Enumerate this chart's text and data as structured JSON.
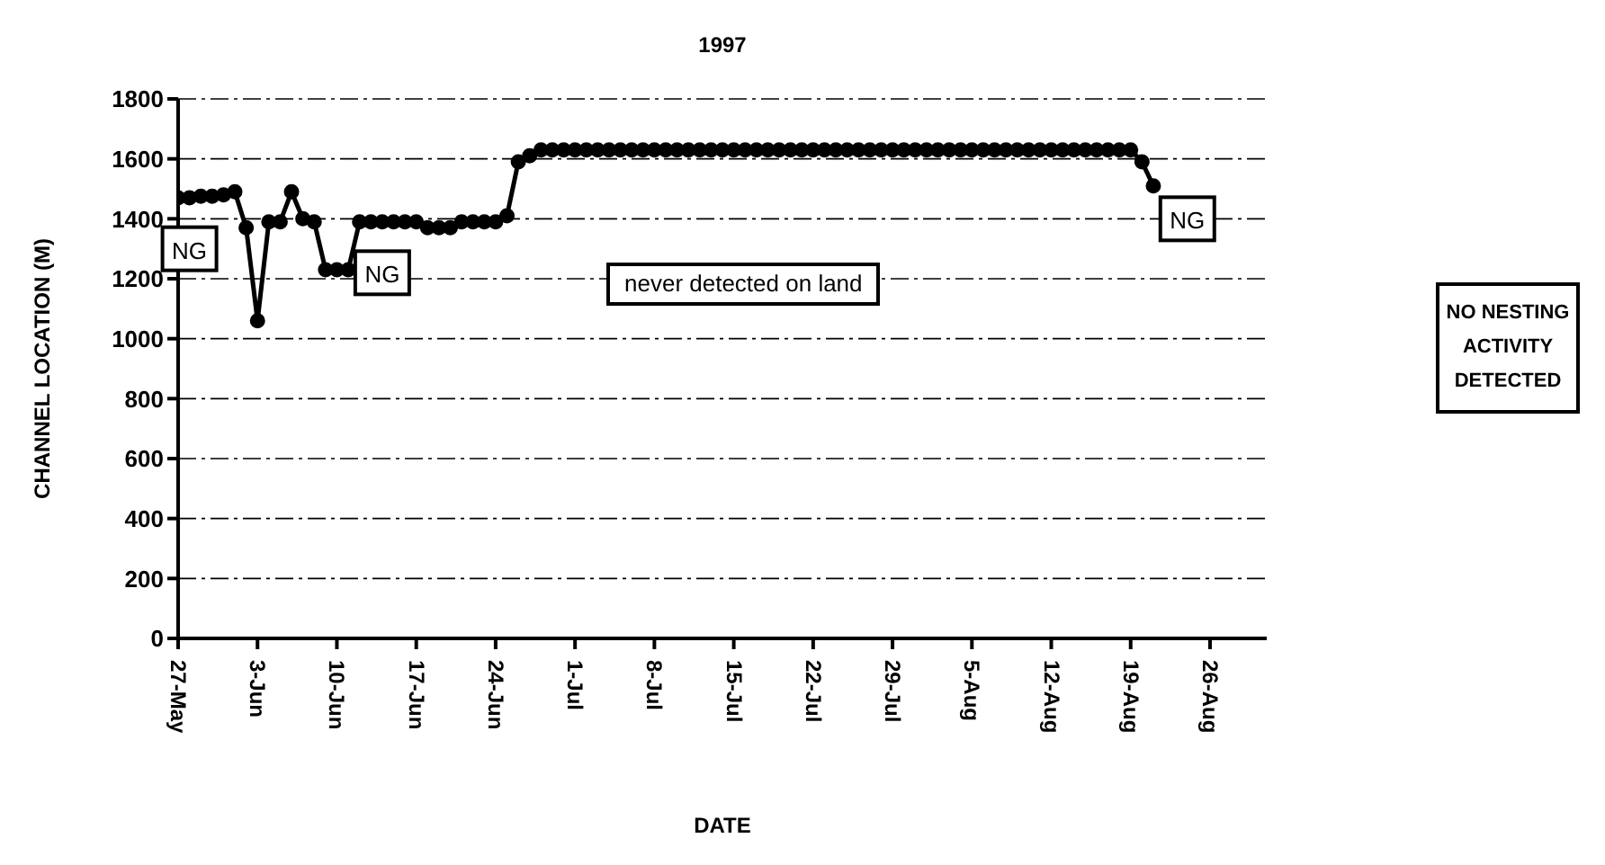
{
  "chart_data": {
    "type": "line",
    "title": "1997",
    "xlabel": "DATE",
    "ylabel": "CHANNEL LOCATION (M)",
    "x": [
      "1997-05-27",
      "1997-05-28",
      "1997-05-29",
      "1997-05-30",
      "1997-05-31",
      "1997-06-01",
      "1997-06-02",
      "1997-06-03",
      "1997-06-04",
      "1997-06-05",
      "1997-06-06",
      "1997-06-07",
      "1997-06-08",
      "1997-06-09",
      "1997-06-10",
      "1997-06-11",
      "1997-06-12",
      "1997-06-13",
      "1997-06-14",
      "1997-06-15",
      "1997-06-16",
      "1997-06-17",
      "1997-06-18",
      "1997-06-19",
      "1997-06-20",
      "1997-06-21",
      "1997-06-22",
      "1997-06-23",
      "1997-06-24",
      "1997-06-25",
      "1997-06-26",
      "1997-06-27",
      "1997-06-28",
      "1997-06-29",
      "1997-06-30",
      "1997-07-01",
      "1997-07-02",
      "1997-07-03",
      "1997-07-04",
      "1997-07-05",
      "1997-07-06",
      "1997-07-07",
      "1997-07-08",
      "1997-07-09",
      "1997-07-10",
      "1997-07-11",
      "1997-07-12",
      "1997-07-13",
      "1997-07-14",
      "1997-07-15",
      "1997-07-16",
      "1997-07-17",
      "1997-07-18",
      "1997-07-19",
      "1997-07-20",
      "1997-07-21",
      "1997-07-22",
      "1997-07-23",
      "1997-07-24",
      "1997-07-25",
      "1997-07-26",
      "1997-07-27",
      "1997-07-28",
      "1997-07-29",
      "1997-07-30",
      "1997-07-31",
      "1997-08-01",
      "1997-08-02",
      "1997-08-03",
      "1997-08-04",
      "1997-08-05",
      "1997-08-06",
      "1997-08-07",
      "1997-08-08",
      "1997-08-09",
      "1997-08-10",
      "1997-08-11",
      "1997-08-12",
      "1997-08-13",
      "1997-08-14",
      "1997-08-15",
      "1997-08-16",
      "1997-08-17",
      "1997-08-18",
      "1997-08-19",
      "1997-08-20",
      "1997-08-21"
    ],
    "series": [
      {
        "color": "#000000",
        "values": [
          1470,
          1470,
          1475,
          1475,
          1480,
          1490,
          1370,
          1060,
          1390,
          1390,
          1490,
          1400,
          1390,
          1230,
          1230,
          1230,
          1390,
          1390,
          1390,
          1390,
          1390,
          1390,
          1370,
          1370,
          1370,
          1390,
          1390,
          1390,
          1390,
          1410,
          1590,
          1610,
          1630,
          1630,
          1630,
          1630,
          1630,
          1630,
          1630,
          1630,
          1630,
          1630,
          1630,
          1630,
          1630,
          1630,
          1630,
          1630,
          1630,
          1630,
          1630,
          1630,
          1630,
          1630,
          1630,
          1630,
          1630,
          1630,
          1630,
          1630,
          1630,
          1630,
          1630,
          1630,
          1630,
          1630,
          1630,
          1630,
          1630,
          1630,
          1630,
          1630,
          1630,
          1630,
          1630,
          1630,
          1630,
          1630,
          1630,
          1630,
          1630,
          1630,
          1630,
          1630,
          1630,
          1590,
          1510
        ]
      }
    ],
    "xlim": [
      "1997-05-27",
      "1997-08-31"
    ],
    "xticks": [
      {
        "value": "1997-05-27",
        "label": "27-May"
      },
      {
        "value": "1997-06-03",
        "label": "3-Jun"
      },
      {
        "value": "1997-06-10",
        "label": "10-Jun"
      },
      {
        "value": "1997-06-17",
        "label": "17-Jun"
      },
      {
        "value": "1997-06-24",
        "label": "24-Jun"
      },
      {
        "value": "1997-07-01",
        "label": "1-Jul"
      },
      {
        "value": "1997-07-08",
        "label": "8-Jul"
      },
      {
        "value": "1997-07-15",
        "label": "15-Jul"
      },
      {
        "value": "1997-07-22",
        "label": "22-Jul"
      },
      {
        "value": "1997-07-29",
        "label": "29-Jul"
      },
      {
        "value": "1997-08-05",
        "label": "5-Aug"
      },
      {
        "value": "1997-08-12",
        "label": "12-Aug"
      },
      {
        "value": "1997-08-19",
        "label": "19-Aug"
      },
      {
        "value": "1997-08-26",
        "label": "26-Aug"
      }
    ],
    "ylim": [
      0,
      1800
    ],
    "yticks": [
      0,
      200,
      400,
      600,
      800,
      1000,
      1200,
      1400,
      1600,
      1800
    ],
    "grid": "y",
    "marker": "circle",
    "line_style": "solid",
    "annotations": [
      {
        "text": "NG",
        "x": "1997-05-28",
        "y": 1300
      },
      {
        "text": "NG",
        "x": "1997-06-14",
        "y": 1220
      },
      {
        "text": "NG",
        "x": "1997-08-24",
        "y": 1400
      },
      "never detected on land",
      "NO NESTING ACTIVITY DETECTED"
    ]
  }
}
